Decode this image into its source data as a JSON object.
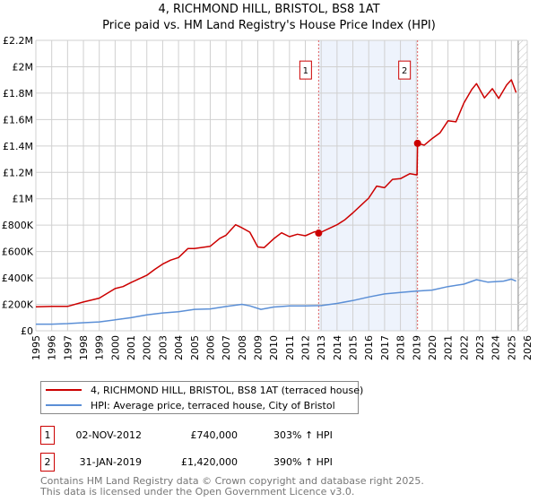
{
  "title": "4, RICHMOND HILL, BRISTOL, BS8 1AT",
  "subtitle": "Price paid vs. HM Land Registry's House Price Index (HPI)",
  "chart_data": {
    "type": "line",
    "xlim": [
      1995,
      2026
    ],
    "ylim": [
      0,
      2200000
    ],
    "x_ticks": [
      "1995",
      "1996",
      "1997",
      "1998",
      "1999",
      "2000",
      "2001",
      "2002",
      "2003",
      "2004",
      "2005",
      "2006",
      "2007",
      "2008",
      "2009",
      "2010",
      "2011",
      "2012",
      "2013",
      "2014",
      "2015",
      "2016",
      "2017",
      "2018",
      "2019",
      "2020",
      "2021",
      "2022",
      "2023",
      "2024",
      "2025",
      "2026"
    ],
    "y_ticks": [
      {
        "value": 0,
        "label": "£0"
      },
      {
        "value": 200000,
        "label": "£200K"
      },
      {
        "value": 400000,
        "label": "£400K"
      },
      {
        "value": 600000,
        "label": "£600K"
      },
      {
        "value": 800000,
        "label": "£800K"
      },
      {
        "value": 1000000,
        "label": "£1M"
      },
      {
        "value": 1200000,
        "label": "£1.2M"
      },
      {
        "value": 1400000,
        "label": "£1.4M"
      },
      {
        "value": 1600000,
        "label": "£1.6M"
      },
      {
        "value": 1800000,
        "label": "£1.8M"
      },
      {
        "value": 2000000,
        "label": "£2M"
      },
      {
        "value": 2200000,
        "label": "£2.2M"
      }
    ],
    "grid": true,
    "shaded_period": [
      2012.84,
      2019.08
    ],
    "forecast_hatch_from": 2025.43,
    "series": [
      {
        "name": "4, RICHMOND HILL, BRISTOL, BS8 1AT (terraced house)",
        "color": "#cc0000",
        "points": [
          [
            1995,
            182000
          ],
          [
            1996,
            185000
          ],
          [
            1997,
            185000
          ],
          [
            1998,
            218000
          ],
          [
            1999,
            247000
          ],
          [
            2000,
            320000
          ],
          [
            2000.5,
            335000
          ],
          [
            2001,
            365000
          ],
          [
            2002,
            420000
          ],
          [
            2002.5,
            465000
          ],
          [
            2003,
            505000
          ],
          [
            2003.5,
            535000
          ],
          [
            2004,
            555000
          ],
          [
            2004.6,
            623000
          ],
          [
            2005,
            623000
          ],
          [
            2006,
            640000
          ],
          [
            2006.6,
            700000
          ],
          [
            2007,
            724000
          ],
          [
            2007.6,
            803000
          ],
          [
            2008,
            780000
          ],
          [
            2008.5,
            747000
          ],
          [
            2009,
            635000
          ],
          [
            2009.4,
            630000
          ],
          [
            2010,
            697000
          ],
          [
            2010.5,
            742000
          ],
          [
            2011,
            713000
          ],
          [
            2011.5,
            731000
          ],
          [
            2012,
            720000
          ],
          [
            2012.6,
            751000
          ],
          [
            2012.84,
            740000
          ],
          [
            2013,
            747000
          ],
          [
            2014,
            803000
          ],
          [
            2014.5,
            841000
          ],
          [
            2015,
            893000
          ],
          [
            2015.5,
            949000
          ],
          [
            2016,
            1005000
          ],
          [
            2016.5,
            1096000
          ],
          [
            2017,
            1084000
          ],
          [
            2017.5,
            1147000
          ],
          [
            2018,
            1152000
          ],
          [
            2018.6,
            1190000
          ],
          [
            2019.05,
            1181000
          ],
          [
            2019.08,
            1420000
          ],
          [
            2019.5,
            1406000
          ],
          [
            2020,
            1456000
          ],
          [
            2020.5,
            1500000
          ],
          [
            2021,
            1590000
          ],
          [
            2021.5,
            1583000
          ],
          [
            2022,
            1725000
          ],
          [
            2022.5,
            1827000
          ],
          [
            2022.8,
            1872000
          ],
          [
            2023.3,
            1764000
          ],
          [
            2023.8,
            1834000
          ],
          [
            2024.2,
            1760000
          ],
          [
            2024.7,
            1861000
          ],
          [
            2025,
            1901000
          ],
          [
            2025.3,
            1804000
          ]
        ]
      },
      {
        "name": "HPI: Average price, terraced house, City of Bristol",
        "color": "#5b8fd6",
        "points": [
          [
            1995,
            50000
          ],
          [
            1996,
            50000
          ],
          [
            1997,
            54000
          ],
          [
            1998,
            61000
          ],
          [
            1999,
            67000
          ],
          [
            2000,
            83000
          ],
          [
            2001,
            99000
          ],
          [
            2002,
            121000
          ],
          [
            2003,
            135000
          ],
          [
            2004,
            144000
          ],
          [
            2005,
            162000
          ],
          [
            2006,
            166000
          ],
          [
            2007,
            184000
          ],
          [
            2008,
            200000
          ],
          [
            2008.5,
            189000
          ],
          [
            2009.2,
            162000
          ],
          [
            2010,
            180000
          ],
          [
            2011,
            189000
          ],
          [
            2012,
            189000
          ],
          [
            2013,
            191000
          ],
          [
            2014,
            207000
          ],
          [
            2015,
            229000
          ],
          [
            2016,
            256000
          ],
          [
            2017,
            279000
          ],
          [
            2018,
            290000
          ],
          [
            2019,
            301000
          ],
          [
            2020,
            308000
          ],
          [
            2021,
            335000
          ],
          [
            2022,
            353000
          ],
          [
            2022.8,
            387000
          ],
          [
            2023.5,
            369000
          ],
          [
            2024.5,
            376000
          ],
          [
            2025,
            391000
          ],
          [
            2025.3,
            376000
          ]
        ]
      }
    ],
    "sales": [
      {
        "label": "1",
        "x": 2012.84,
        "value": 740000
      },
      {
        "label": "2",
        "x": 2019.08,
        "value": 1420000
      }
    ]
  },
  "legend": [
    {
      "label": "4, RICHMOND HILL, BRISTOL, BS8 1AT (terraced house)",
      "color": "#cc0000"
    },
    {
      "label": "HPI: Average price, terraced house, City of Bristol",
      "color": "#5b8fd6"
    }
  ],
  "transactions": [
    {
      "num": "1",
      "date": "02-NOV-2012",
      "price": "£740,000",
      "hpi": "303% ↑ HPI"
    },
    {
      "num": "2",
      "date": "31-JAN-2019",
      "price": "£1,420,000",
      "hpi": "390% ↑ HPI"
    }
  ],
  "footer": [
    "Contains HM Land Registry data © Crown copyright and database right 2025.",
    "This data is licensed under the Open Government Licence v3.0."
  ]
}
